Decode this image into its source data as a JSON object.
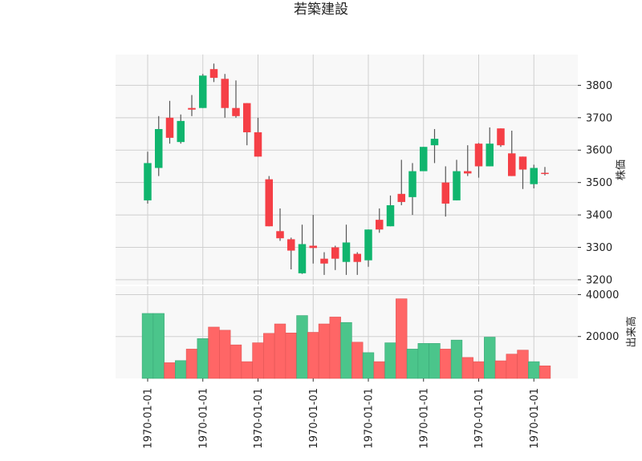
{
  "chart_data": {
    "type": "candlestick",
    "title": "若築建設",
    "price_axis_label": "株価",
    "volume_axis_label": "出来高",
    "price_ylim": [
      3185,
      3895
    ],
    "price_ticks": [
      3200,
      3300,
      3400,
      3500,
      3600,
      3700,
      3800
    ],
    "volume_ylim": [
      0,
      44000
    ],
    "volume_ticks": [
      20000,
      40000
    ],
    "x_tick_labels": [
      "1970-01-01",
      "1970-01-01",
      "1970-01-01",
      "1970-01-01",
      "1970-01-01",
      "1970-01-01",
      "1970-01-01",
      "1970-01-01"
    ],
    "x_tick_positions": [
      0,
      5,
      10,
      15,
      20,
      25,
      30,
      35
    ],
    "grid": true,
    "colors": {
      "up": "#10b56e",
      "down": "#f53f46",
      "wick": "#555555",
      "up_volume": "#4bc58b",
      "down_volume": "#ff6666",
      "panel_bg": "#f8f8f8",
      "grid": "#cfcfcf"
    },
    "candles": [
      {
        "open": 3445,
        "close": 3560,
        "high": 3595,
        "low": 3435,
        "volume": 31000
      },
      {
        "open": 3545,
        "close": 3665,
        "high": 3705,
        "low": 3520,
        "volume": 31000
      },
      {
        "open": 3700,
        "close": 3638,
        "high": 3752,
        "low": 3620,
        "volume": 7500
      },
      {
        "open": 3625,
        "close": 3690,
        "high": 3710,
        "low": 3620,
        "volume": 8500
      },
      {
        "open": 3730,
        "close": 3725,
        "high": 3770,
        "low": 3705,
        "volume": 14000
      },
      {
        "open": 3730,
        "close": 3830,
        "high": 3835,
        "low": 3730,
        "volume": 19000
      },
      {
        "open": 3850,
        "close": 3823,
        "high": 3867,
        "low": 3810,
        "volume": 24500
      },
      {
        "open": 3820,
        "close": 3730,
        "high": 3835,
        "low": 3700,
        "volume": 23000
      },
      {
        "open": 3730,
        "close": 3705,
        "high": 3815,
        "low": 3700,
        "volume": 16000
      },
      {
        "open": 3745,
        "close": 3655,
        "high": 3745,
        "low": 3615,
        "volume": 8000
      },
      {
        "open": 3655,
        "close": 3580,
        "high": 3700,
        "low": 3580,
        "volume": 17000
      },
      {
        "open": 3510,
        "close": 3365,
        "high": 3520,
        "low": 3365,
        "volume": 21500
      },
      {
        "open": 3350,
        "close": 3328,
        "high": 3420,
        "low": 3320,
        "volume": 26000
      },
      {
        "open": 3325,
        "close": 3290,
        "high": 3330,
        "low": 3232,
        "volume": 21700
      },
      {
        "open": 3220,
        "close": 3310,
        "high": 3370,
        "low": 3218,
        "volume": 30000
      },
      {
        "open": 3305,
        "close": 3298,
        "high": 3400,
        "low": 3250,
        "volume": 22000
      },
      {
        "open": 3265,
        "close": 3250,
        "high": 3285,
        "low": 3215,
        "volume": 26000
      },
      {
        "open": 3300,
        "close": 3265,
        "high": 3305,
        "low": 3230,
        "volume": 29300
      },
      {
        "open": 3255,
        "close": 3315,
        "high": 3370,
        "low": 3215,
        "volume": 26700
      },
      {
        "open": 3280,
        "close": 3255,
        "high": 3285,
        "low": 3215,
        "volume": 17300
      },
      {
        "open": 3260,
        "close": 3355,
        "high": 3355,
        "low": 3240,
        "volume": 12300
      },
      {
        "open": 3385,
        "close": 3355,
        "high": 3420,
        "low": 3345,
        "volume": 8000
      },
      {
        "open": 3365,
        "close": 3430,
        "high": 3460,
        "low": 3365,
        "volume": 17000
      },
      {
        "open": 3465,
        "close": 3440,
        "high": 3570,
        "low": 3430,
        "volume": 38000
      },
      {
        "open": 3455,
        "close": 3535,
        "high": 3560,
        "low": 3400,
        "volume": 14000
      },
      {
        "open": 3535,
        "close": 3610,
        "high": 3610,
        "low": 3535,
        "volume": 16700
      },
      {
        "open": 3615,
        "close": 3635,
        "high": 3665,
        "low": 3560,
        "volume": 16700
      },
      {
        "open": 3500,
        "close": 3435,
        "high": 3550,
        "low": 3395,
        "volume": 14000
      },
      {
        "open": 3445,
        "close": 3535,
        "high": 3570,
        "low": 3445,
        "volume": 18300
      },
      {
        "open": 3535,
        "close": 3528,
        "high": 3615,
        "low": 3520,
        "volume": 10000
      },
      {
        "open": 3620,
        "close": 3550,
        "high": 3622,
        "low": 3515,
        "volume": 8000
      },
      {
        "open": 3550,
        "close": 3620,
        "high": 3670,
        "low": 3550,
        "volume": 19700
      },
      {
        "open": 3667,
        "close": 3615,
        "high": 3667,
        "low": 3610,
        "volume": 8400
      },
      {
        "open": 3590,
        "close": 3520,
        "high": 3660,
        "low": 3520,
        "volume": 11600
      },
      {
        "open": 3580,
        "close": 3540,
        "high": 3580,
        "low": 3480,
        "volume": 13500
      },
      {
        "open": 3495,
        "close": 3545,
        "high": 3555,
        "low": 3482,
        "volume": 8000
      },
      {
        "open": 3530,
        "close": 3528,
        "high": 3548,
        "low": 3522,
        "volume": 6000
      }
    ]
  }
}
